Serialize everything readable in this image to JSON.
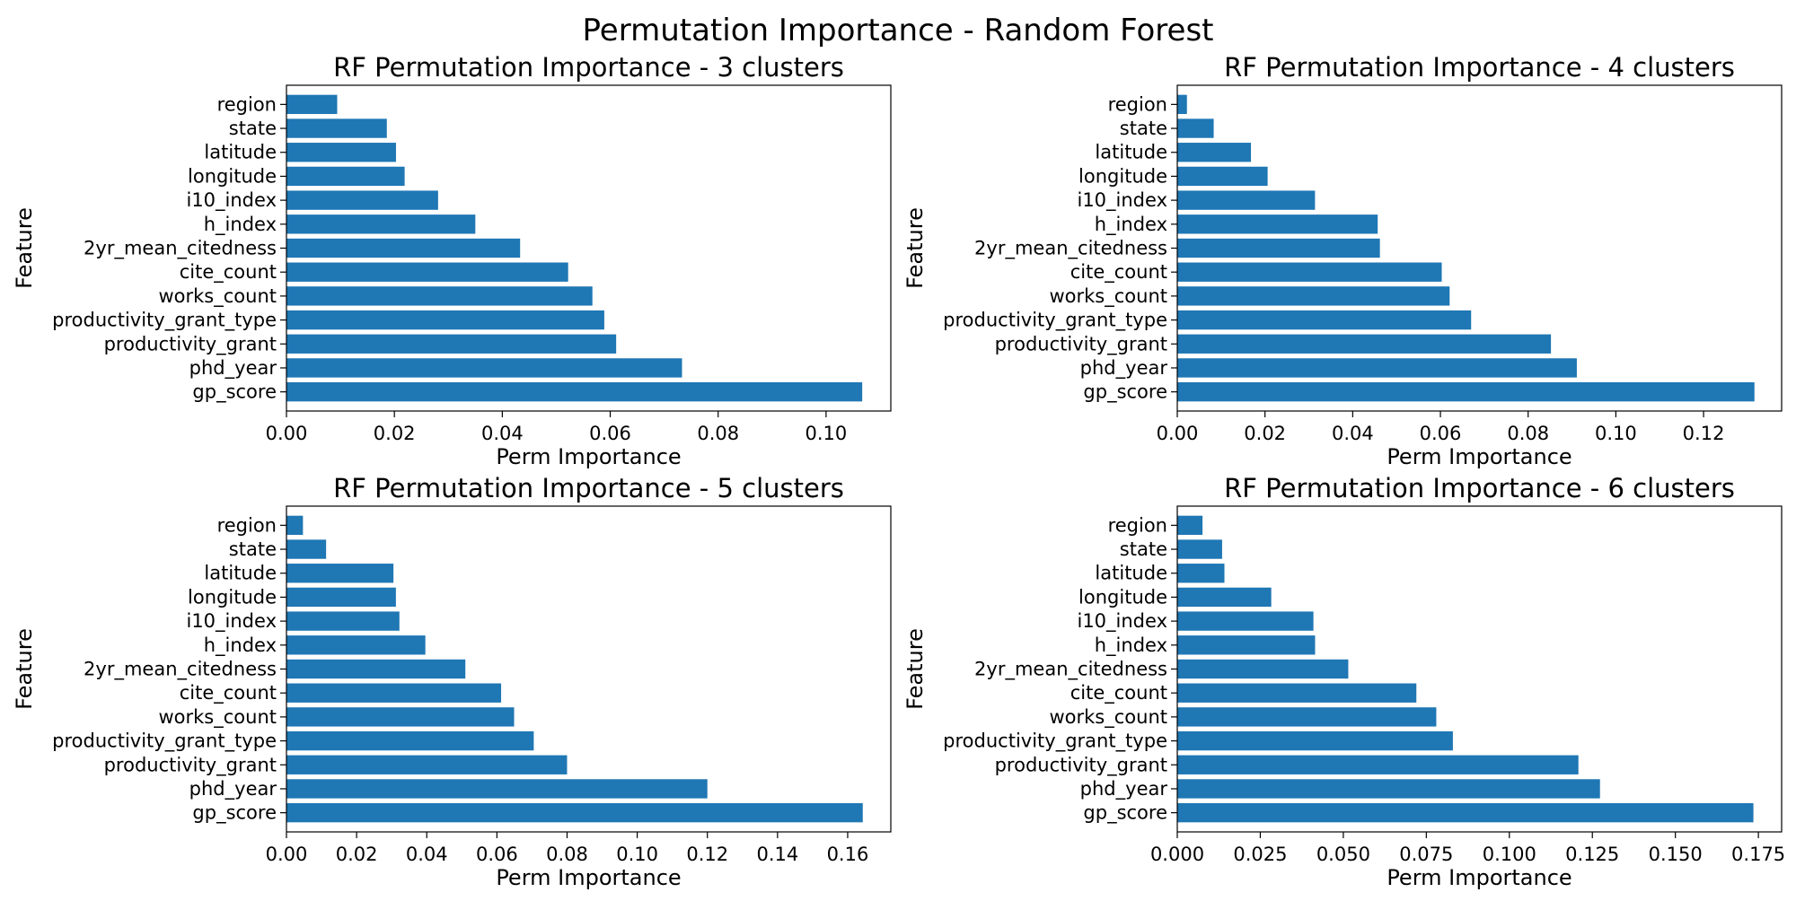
{
  "figure": {
    "suptitle": "Permutation Importance - Random Forest"
  },
  "colors": {
    "bar": "#1f77b4",
    "axis": "#000000",
    "background": "#ffffff"
  },
  "chart_data": [
    {
      "type": "bar",
      "orientation": "horizontal",
      "title": "RF Permutation Importance - 3 clusters",
      "xlabel": "Perm Importance",
      "ylabel": "Feature",
      "xlim": [
        0,
        0.112
      ],
      "xticks": [
        "0.00",
        "0.02",
        "0.04",
        "0.06",
        "0.08",
        "0.10"
      ],
      "xtick_values": [
        0,
        0.02,
        0.04,
        0.06,
        0.08,
        0.1
      ],
      "grid": false,
      "categories": [
        "gp_score",
        "phd_year",
        "productivity_grant",
        "productivity_grant_type",
        "works_count",
        "cite_count",
        "2yr_mean_citedness",
        "h_index",
        "i10_index",
        "longitude",
        "latitude",
        "state",
        "region"
      ],
      "values": [
        0.1067,
        0.0733,
        0.0611,
        0.0589,
        0.0567,
        0.0522,
        0.0433,
        0.035,
        0.0281,
        0.0219,
        0.0203,
        0.0186,
        0.0094
      ]
    },
    {
      "type": "bar",
      "orientation": "horizontal",
      "title": "RF Permutation Importance - 4 clusters",
      "xlabel": "Perm Importance",
      "ylabel": "Feature",
      "xlim": [
        0,
        0.1378
      ],
      "xticks": [
        "0.00",
        "0.02",
        "0.04",
        "0.06",
        "0.08",
        "0.10",
        "0.12"
      ],
      "xtick_values": [
        0,
        0.02,
        0.04,
        0.06,
        0.08,
        0.1,
        0.12
      ],
      "grid": false,
      "categories": [
        "gp_score",
        "phd_year",
        "productivity_grant",
        "productivity_grant_type",
        "works_count",
        "cite_count",
        "2yr_mean_citedness",
        "h_index",
        "i10_index",
        "longitude",
        "latitude",
        "state",
        "region"
      ],
      "values": [
        0.1316,
        0.0911,
        0.0852,
        0.067,
        0.0621,
        0.0603,
        0.0462,
        0.0457,
        0.0314,
        0.0206,
        0.0168,
        0.0083,
        0.0022
      ]
    },
    {
      "type": "bar",
      "orientation": "horizontal",
      "title": "RF Permutation Importance - 5 clusters",
      "xlabel": "Perm Importance",
      "ylabel": "Feature",
      "xlim": [
        0,
        0.1723
      ],
      "xticks": [
        "0.00",
        "0.02",
        "0.04",
        "0.06",
        "0.08",
        "0.10",
        "0.12",
        "0.14",
        "0.16"
      ],
      "xtick_values": [
        0,
        0.02,
        0.04,
        0.06,
        0.08,
        0.1,
        0.12,
        0.14,
        0.16
      ],
      "grid": false,
      "categories": [
        "gp_score",
        "phd_year",
        "productivity_grant",
        "productivity_grant_type",
        "works_count",
        "cite_count",
        "2yr_mean_citedness",
        "h_index",
        "i10_index",
        "longitude",
        "latitude",
        "state",
        "region"
      ],
      "values": [
        0.1643,
        0.12,
        0.08,
        0.0705,
        0.0649,
        0.0612,
        0.051,
        0.0396,
        0.0322,
        0.0312,
        0.0305,
        0.0113,
        0.0047
      ]
    },
    {
      "type": "bar",
      "orientation": "horizontal",
      "title": "RF Permutation Importance - 6 clusters",
      "xlabel": "Perm Importance",
      "ylabel": "Feature",
      "xlim": [
        0,
        0.182
      ],
      "xticks": [
        "0.000",
        "0.025",
        "0.050",
        "0.075",
        "0.100",
        "0.125",
        "0.150",
        "0.175"
      ],
      "xtick_values": [
        0,
        0.025,
        0.05,
        0.075,
        0.1,
        0.125,
        0.15,
        0.175
      ],
      "grid": false,
      "categories": [
        "gp_score",
        "phd_year",
        "productivity_grant",
        "productivity_grant_type",
        "works_count",
        "cite_count",
        "2yr_mean_citedness",
        "h_index",
        "i10_index",
        "longitude",
        "latitude",
        "state",
        "region"
      ],
      "values": [
        0.1735,
        0.1273,
        0.1208,
        0.083,
        0.078,
        0.072,
        0.0515,
        0.0415,
        0.041,
        0.0283,
        0.0142,
        0.0135,
        0.0076
      ]
    }
  ]
}
